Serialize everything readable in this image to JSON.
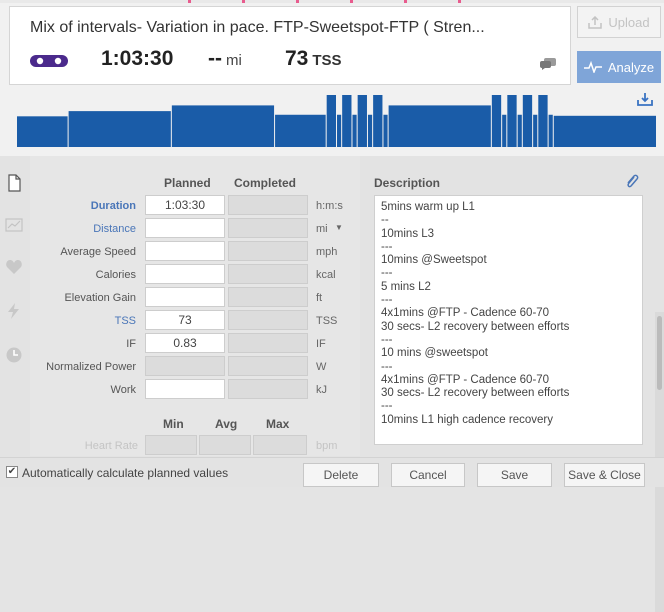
{
  "header": {
    "title": "Mix of intervals- Variation in pace. FTP-Sweetspot-FTP ( Stren...",
    "sport_icon": "bike-icon",
    "duration": "1:03:30",
    "distance_value": "--",
    "distance_unit": "mi",
    "tss_value": "73",
    "tss_unit": "TSS",
    "comment_icon": "comment-icon"
  },
  "actions": {
    "upload_label": "Upload",
    "analyze_label": "Analyze"
  },
  "workout_chart": {
    "type": "bar",
    "segments": [
      {
        "len": 5,
        "level": 0.59
      },
      {
        "len": 10,
        "level": 0.69
      },
      {
        "len": 10,
        "level": 0.8
      },
      {
        "len": 5,
        "level": 0.62
      },
      {
        "len": 1,
        "level": 1.0
      },
      {
        "len": 0.5,
        "level": 0.62
      },
      {
        "len": 1,
        "level": 1.0
      },
      {
        "len": 0.5,
        "level": 0.62
      },
      {
        "len": 1,
        "level": 1.0
      },
      {
        "len": 0.5,
        "level": 0.62
      },
      {
        "len": 1,
        "level": 1.0
      },
      {
        "len": 0.5,
        "level": 0.62
      },
      {
        "len": 10,
        "level": 0.8
      },
      {
        "len": 1,
        "level": 1.0
      },
      {
        "len": 0.5,
        "level": 0.62
      },
      {
        "len": 1,
        "level": 1.0
      },
      {
        "len": 0.5,
        "level": 0.62
      },
      {
        "len": 1,
        "level": 1.0
      },
      {
        "len": 0.5,
        "level": 0.62
      },
      {
        "len": 1,
        "level": 1.0
      },
      {
        "len": 0.5,
        "level": 0.62
      },
      {
        "len": 10,
        "level": 0.6
      }
    ]
  },
  "form": {
    "planned_header": "Planned",
    "completed_header": "Completed",
    "rows": [
      {
        "label": "Duration",
        "planned": "1:03:30",
        "unit": "h:m:s"
      },
      {
        "label": "Distance",
        "planned": "",
        "unit": "mi"
      },
      {
        "label": "Average Speed",
        "planned": "",
        "unit": "mph"
      },
      {
        "label": "Calories",
        "planned": "",
        "unit": "kcal"
      },
      {
        "label": "Elevation Gain",
        "planned": "",
        "unit": "ft"
      },
      {
        "label": "TSS",
        "planned": "73",
        "unit": "TSS"
      },
      {
        "label": "IF",
        "planned": "0.83",
        "unit": "IF"
      },
      {
        "label": "Normalized Power",
        "planned": "",
        "unit": "W"
      },
      {
        "label": "Work",
        "planned": "",
        "unit": "kJ"
      }
    ],
    "min_header": "Min",
    "avg_header": "Avg",
    "max_header": "Max",
    "heart_rate_label": "Heart Rate",
    "heart_rate_unit": "bpm"
  },
  "description": {
    "label": "Description",
    "lines": [
      "5mins warm up L1",
      "--",
      "10mins L3",
      "---",
      "10mins @Sweetspot",
      "---",
      "5 mins L2",
      "---",
      "4x1mins @FTP - Cadence 60-70",
      "30 secs- L2 recovery between efforts",
      "---",
      "10 mins @sweetspot",
      "---",
      "4x1mins @FTP - Cadence 60-70",
      "30 secs- L2 recovery between efforts",
      "---",
      "10mins L1 high cadence recovery"
    ]
  },
  "footer": {
    "auto_calc_label": "Automatically calculate planned values",
    "delete_label": "Delete",
    "cancel_label": "Cancel",
    "save_label": "Save",
    "save_close_label": "Save & Close"
  },
  "colors": {
    "chart_bar": "#1a5ca8",
    "accent_blue": "#7fa5d8",
    "link_blue": "#4a76b8",
    "bike_purple": "#4b2a8c"
  }
}
